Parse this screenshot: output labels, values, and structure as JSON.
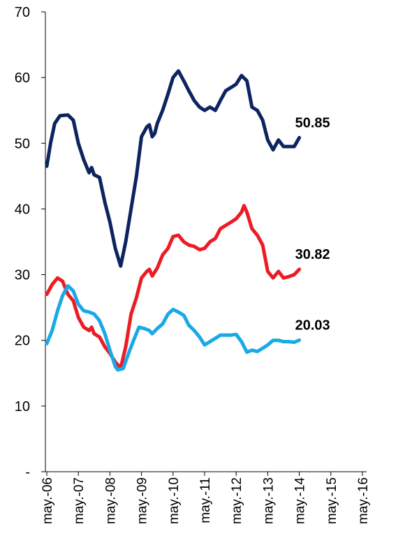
{
  "chart_data": {
    "type": "line",
    "title": "",
    "xlabel": "",
    "ylabel": "",
    "ylim": [
      0,
      70
    ],
    "y_ticks": [
      {
        "value": 0,
        "label": "-"
      },
      {
        "value": 10,
        "label": "10"
      },
      {
        "value": 20,
        "label": "20"
      },
      {
        "value": 30,
        "label": "30"
      },
      {
        "value": 40,
        "label": "40"
      },
      {
        "value": 50,
        "label": "50"
      },
      {
        "value": 60,
        "label": "60"
      },
      {
        "value": 70,
        "label": "70"
      }
    ],
    "x_ticks": [
      "may.-06",
      "may.-07",
      "may.-08",
      "may.-09",
      "may.-10",
      "may.-11",
      "may.-12",
      "may.-13",
      "may.-14",
      "may.-15",
      "may.-16"
    ],
    "grid": false,
    "legend": "none",
    "series": [
      {
        "color": "#0d2461",
        "end_label": "50.85",
        "points": [
          [
            2006.33,
            46.5
          ],
          [
            2006.45,
            50
          ],
          [
            2006.58,
            53
          ],
          [
            2006.75,
            54.2
          ],
          [
            2007.0,
            54.3
          ],
          [
            2007.17,
            53.5
          ],
          [
            2007.33,
            50
          ],
          [
            2007.5,
            47.5
          ],
          [
            2007.67,
            45.5
          ],
          [
            2007.75,
            46.3
          ],
          [
            2007.83,
            45.2
          ],
          [
            2008.0,
            44.8
          ],
          [
            2008.17,
            41
          ],
          [
            2008.33,
            38
          ],
          [
            2008.5,
            34
          ],
          [
            2008.67,
            31.3
          ],
          [
            2008.83,
            35
          ],
          [
            2009.0,
            40
          ],
          [
            2009.17,
            45
          ],
          [
            2009.33,
            51
          ],
          [
            2009.5,
            52.5
          ],
          [
            2009.58,
            52.8
          ],
          [
            2009.67,
            51
          ],
          [
            2009.75,
            51.5
          ],
          [
            2009.83,
            53
          ],
          [
            2010.0,
            55
          ],
          [
            2010.17,
            57.5
          ],
          [
            2010.33,
            60
          ],
          [
            2010.5,
            61
          ],
          [
            2010.67,
            59.5
          ],
          [
            2010.83,
            58
          ],
          [
            2011.0,
            56.5
          ],
          [
            2011.17,
            55.5
          ],
          [
            2011.33,
            55
          ],
          [
            2011.5,
            55.5
          ],
          [
            2011.67,
            55
          ],
          [
            2011.83,
            56.5
          ],
          [
            2012.0,
            58
          ],
          [
            2012.17,
            58.5
          ],
          [
            2012.33,
            59
          ],
          [
            2012.5,
            60.3
          ],
          [
            2012.67,
            59.5
          ],
          [
            2012.83,
            55.5
          ],
          [
            2013.0,
            55
          ],
          [
            2013.17,
            53.5
          ],
          [
            2013.33,
            50.5
          ],
          [
            2013.5,
            49
          ],
          [
            2013.67,
            50.5
          ],
          [
            2013.83,
            49.5
          ],
          [
            2014.0,
            49.5
          ],
          [
            2014.17,
            49.5
          ],
          [
            2014.33,
            50.85
          ]
        ]
      },
      {
        "color": "#ec1c24",
        "end_label": "30.82",
        "points": [
          [
            2006.33,
            27
          ],
          [
            2006.5,
            28.5
          ],
          [
            2006.67,
            29.5
          ],
          [
            2006.83,
            29
          ],
          [
            2007.0,
            27
          ],
          [
            2007.17,
            26
          ],
          [
            2007.33,
            23.5
          ],
          [
            2007.5,
            22
          ],
          [
            2007.67,
            21.5
          ],
          [
            2007.75,
            22
          ],
          [
            2007.83,
            21
          ],
          [
            2008.0,
            20.5
          ],
          [
            2008.17,
            19
          ],
          [
            2008.33,
            18
          ],
          [
            2008.5,
            16.7
          ],
          [
            2008.67,
            15.8
          ],
          [
            2008.83,
            19
          ],
          [
            2009.0,
            24
          ],
          [
            2009.17,
            26.5
          ],
          [
            2009.33,
            29.5
          ],
          [
            2009.5,
            30.5
          ],
          [
            2009.58,
            30.8
          ],
          [
            2009.67,
            29.8
          ],
          [
            2009.83,
            31
          ],
          [
            2010.0,
            33
          ],
          [
            2010.17,
            34
          ],
          [
            2010.33,
            35.8
          ],
          [
            2010.5,
            36
          ],
          [
            2010.67,
            35
          ],
          [
            2010.83,
            34.5
          ],
          [
            2011.0,
            34.3
          ],
          [
            2011.17,
            33.8
          ],
          [
            2011.33,
            34
          ],
          [
            2011.5,
            35
          ],
          [
            2011.67,
            35.5
          ],
          [
            2011.83,
            37
          ],
          [
            2012.0,
            37.5
          ],
          [
            2012.17,
            38
          ],
          [
            2012.33,
            38.5
          ],
          [
            2012.5,
            39.5
          ],
          [
            2012.58,
            40.5
          ],
          [
            2012.67,
            39.5
          ],
          [
            2012.83,
            37
          ],
          [
            2013.0,
            36
          ],
          [
            2013.17,
            34.5
          ],
          [
            2013.33,
            30.5
          ],
          [
            2013.5,
            29.5
          ],
          [
            2013.67,
            30.5
          ],
          [
            2013.83,
            29.5
          ],
          [
            2014.0,
            29.7
          ],
          [
            2014.17,
            30
          ],
          [
            2014.33,
            30.82
          ]
        ]
      },
      {
        "color": "#1aa9e6",
        "end_label": "20.03",
        "points": [
          [
            2006.33,
            19.5
          ],
          [
            2006.5,
            21.5
          ],
          [
            2006.67,
            24.5
          ],
          [
            2006.83,
            26.8
          ],
          [
            2007.0,
            28.3
          ],
          [
            2007.17,
            27.5
          ],
          [
            2007.33,
            25.5
          ],
          [
            2007.5,
            24.5
          ],
          [
            2007.67,
            24.3
          ],
          [
            2007.83,
            24
          ],
          [
            2008.0,
            23
          ],
          [
            2008.17,
            21
          ],
          [
            2008.33,
            18.5
          ],
          [
            2008.5,
            16
          ],
          [
            2008.58,
            15.5
          ],
          [
            2008.75,
            15.7
          ],
          [
            2008.92,
            18
          ],
          [
            2009.08,
            20
          ],
          [
            2009.25,
            22
          ],
          [
            2009.42,
            21.8
          ],
          [
            2009.58,
            21.5
          ],
          [
            2009.67,
            21
          ],
          [
            2009.83,
            21.8
          ],
          [
            2010.0,
            22.5
          ],
          [
            2010.17,
            24
          ],
          [
            2010.33,
            24.7
          ],
          [
            2010.5,
            24.3
          ],
          [
            2010.67,
            23.8
          ],
          [
            2010.83,
            22.3
          ],
          [
            2011.0,
            21.5
          ],
          [
            2011.17,
            20.5
          ],
          [
            2011.33,
            19.3
          ],
          [
            2011.5,
            19.8
          ],
          [
            2011.67,
            20.3
          ],
          [
            2011.83,
            20.8
          ],
          [
            2012.0,
            20.8
          ],
          [
            2012.17,
            20.8
          ],
          [
            2012.33,
            20.9
          ],
          [
            2012.5,
            19.8
          ],
          [
            2012.67,
            18.2
          ],
          [
            2012.83,
            18.5
          ],
          [
            2013.0,
            18.3
          ],
          [
            2013.17,
            18.8
          ],
          [
            2013.33,
            19.3
          ],
          [
            2013.5,
            20
          ],
          [
            2013.67,
            20
          ],
          [
            2013.83,
            19.8
          ],
          [
            2014.0,
            19.8
          ],
          [
            2014.17,
            19.7
          ],
          [
            2014.33,
            20.03
          ]
        ]
      }
    ]
  }
}
